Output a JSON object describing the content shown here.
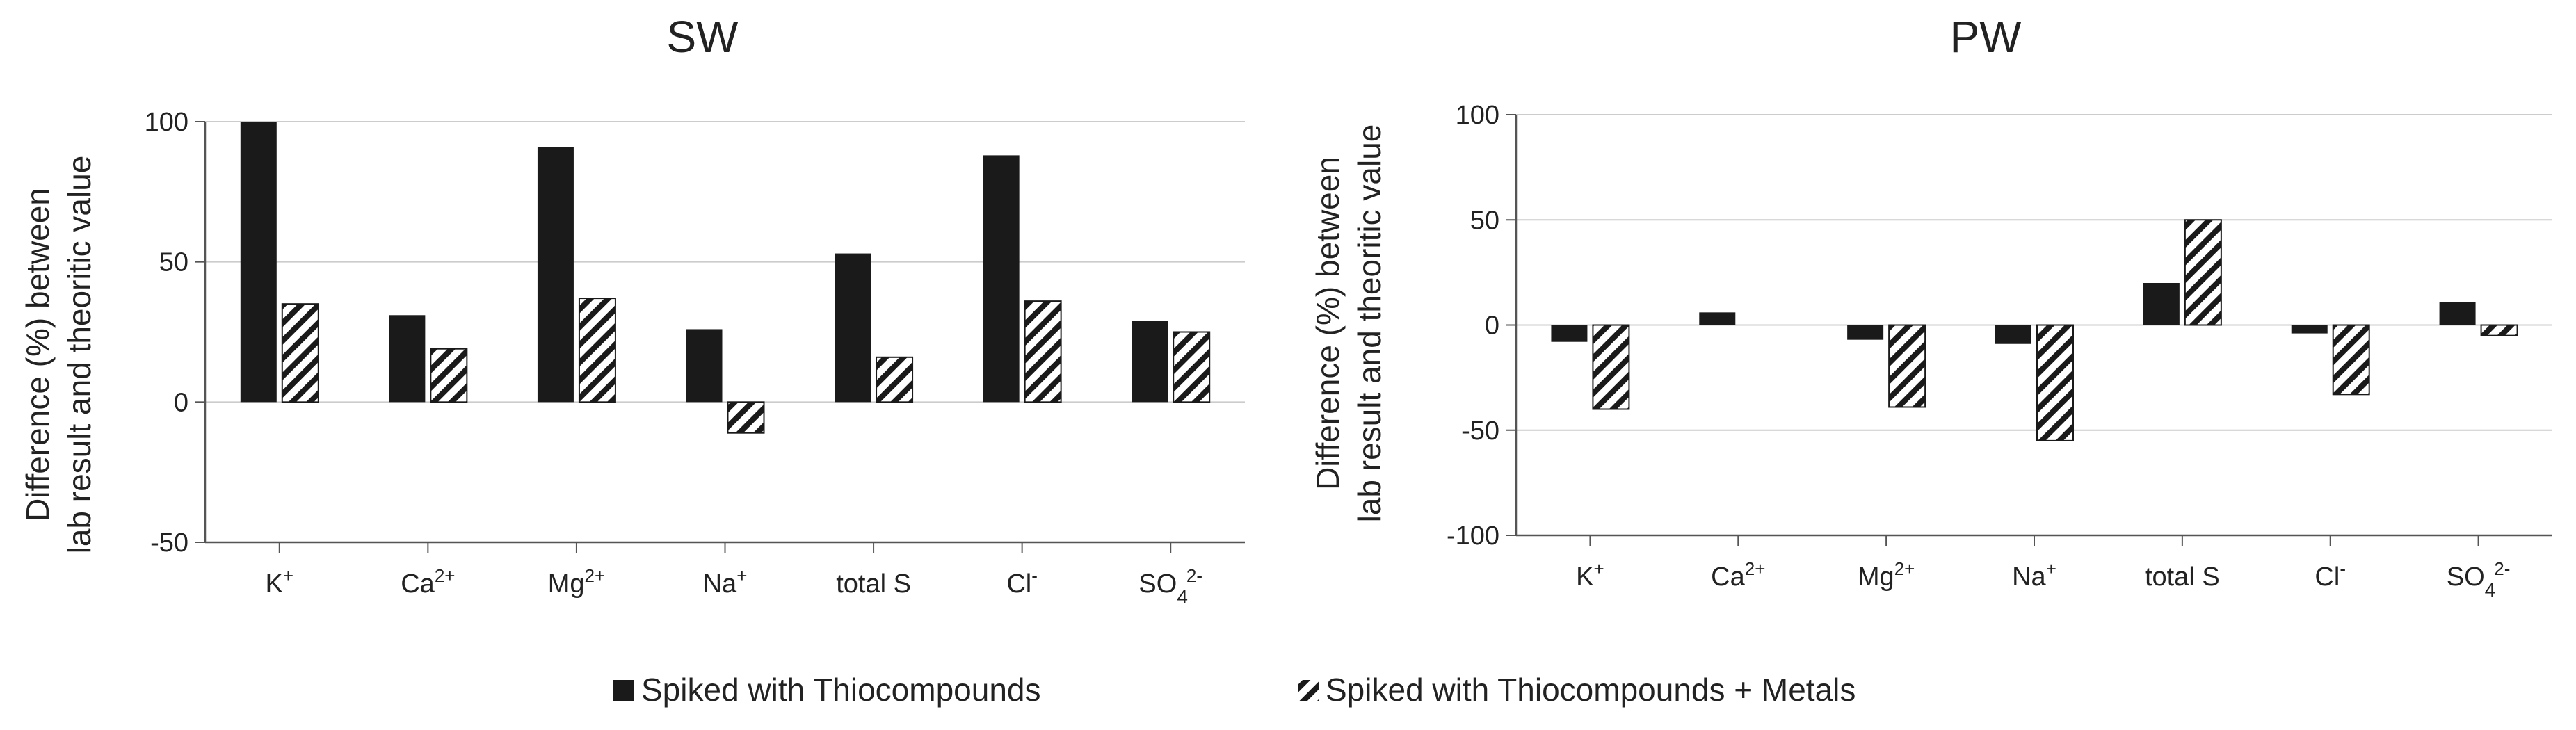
{
  "legend": {
    "series_1": "Spiked with Thiocompounds",
    "series_2": "Spiked with Thiocompounds + Metals"
  },
  "chart_data": [
    {
      "type": "bar",
      "title": "SW",
      "ylabel_line1": "Difference (%) between",
      "ylabel_line2": "lab result and theoritic value",
      "xlabel": "",
      "ylim": [
        -50,
        100
      ],
      "yticks": [
        -50,
        0,
        50,
        100
      ],
      "grid": true,
      "categories": [
        {
          "base": "K",
          "sup": "+"
        },
        {
          "base": "Ca",
          "sup": "2+"
        },
        {
          "base": "Mg",
          "sup": "2+"
        },
        {
          "base": "Na",
          "sup": "+"
        },
        {
          "base": "total S"
        },
        {
          "base": "Cl",
          "sup": "-"
        },
        {
          "base": "SO",
          "sub": "4",
          "sup": "2-"
        }
      ],
      "series": [
        {
          "name": "Spiked with Thiocompounds",
          "values": [
            100,
            31,
            91,
            26,
            53,
            88,
            29
          ]
        },
        {
          "name": "Spiked with Thiocompounds + Metals",
          "values": [
            35,
            19,
            37,
            -11,
            16,
            36,
            25
          ]
        }
      ]
    },
    {
      "type": "bar",
      "title": "PW",
      "ylabel_line1": "Difference (%) between",
      "ylabel_line2": "lab result and theoritic value",
      "xlabel": "",
      "ylim": [
        -100,
        100
      ],
      "yticks": [
        -100,
        -50,
        0,
        50,
        100
      ],
      "grid": true,
      "categories": [
        {
          "base": "K",
          "sup": "+"
        },
        {
          "base": "Ca",
          "sup": "2+"
        },
        {
          "base": "Mg",
          "sup": "2+"
        },
        {
          "base": "Na",
          "sup": "+"
        },
        {
          "base": "total S"
        },
        {
          "base": "Cl",
          "sup": "-"
        },
        {
          "base": "SO",
          "sub": "4",
          "sup": "2-"
        }
      ],
      "series": [
        {
          "name": "Spiked with Thiocompounds",
          "values": [
            -8,
            6,
            -7,
            -9,
            20,
            -4,
            11
          ]
        },
        {
          "name": "Spiked with Thiocompounds + Metals",
          "values": [
            -40,
            0,
            -39,
            -55,
            50,
            -33,
            -5
          ]
        }
      ]
    }
  ],
  "colors": {
    "series_1": "#1a1a1a",
    "series_2_stripe": "#1a1a1a",
    "axis": "#555555",
    "grid": "#cccccc"
  }
}
